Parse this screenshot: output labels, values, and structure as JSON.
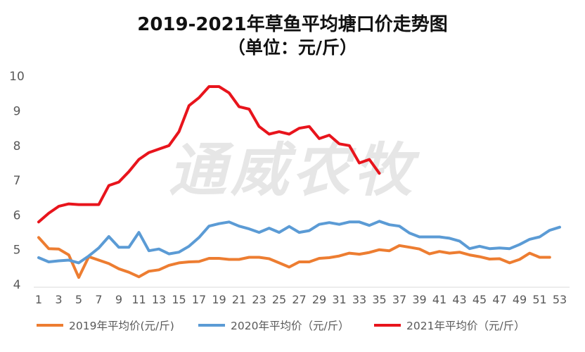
{
  "chart_data": {
    "type": "line",
    "title": "2019-2021年草鱼平均塘口价走势图",
    "subtitle": "（单位：元/斤）",
    "watermark": "通威农牧",
    "ylim": [
      4,
      10
    ],
    "yticks": [
      4,
      5,
      6,
      7,
      8,
      9,
      10
    ],
    "grid": false,
    "legend_position": "bottom",
    "x_tick_labels": [
      1,
      3,
      5,
      7,
      9,
      11,
      13,
      15,
      17,
      19,
      21,
      23,
      25,
      27,
      29,
      31,
      33,
      35,
      37,
      39,
      41,
      43,
      45,
      47,
      49,
      51,
      53
    ],
    "series": [
      {
        "name": "2019年平均价(元/斤)",
        "color": "#ED7D31",
        "x": [
          1,
          2,
          3,
          4,
          5,
          6,
          7,
          8,
          9,
          10,
          11,
          12,
          13,
          14,
          15,
          16,
          17,
          18,
          19,
          20,
          21,
          22,
          23,
          24,
          25,
          26,
          27,
          28,
          29,
          30,
          31,
          32,
          33,
          34,
          35,
          36,
          37,
          38,
          39,
          40,
          41,
          42,
          43,
          44,
          45,
          46,
          47,
          48,
          49,
          50,
          51,
          52
        ],
        "values": [
          5.35,
          5.03,
          5.02,
          4.85,
          4.2,
          4.8,
          4.7,
          4.6,
          4.45,
          4.35,
          4.22,
          4.38,
          4.42,
          4.55,
          4.62,
          4.65,
          4.66,
          4.75,
          4.75,
          4.72,
          4.72,
          4.78,
          4.78,
          4.74,
          4.62,
          4.5,
          4.65,
          4.65,
          4.75,
          4.77,
          4.82,
          4.9,
          4.87,
          4.92,
          5.0,
          4.97,
          5.12,
          5.07,
          5.02,
          4.88,
          4.95,
          4.9,
          4.93,
          4.85,
          4.8,
          4.73,
          4.74,
          4.62,
          4.72,
          4.9,
          4.78,
          4.78
        ]
      },
      {
        "name": "2020年平均价（元/斤）",
        "color": "#5B9BD5",
        "x": [
          1,
          2,
          3,
          4,
          5,
          6,
          7,
          8,
          9,
          10,
          11,
          12,
          13,
          14,
          15,
          16,
          17,
          18,
          19,
          20,
          21,
          22,
          23,
          24,
          25,
          26,
          27,
          28,
          29,
          30,
          31,
          32,
          33,
          34,
          35,
          36,
          37,
          38,
          39,
          40,
          41,
          42,
          43,
          44,
          45,
          46,
          47,
          48,
          49,
          50,
          51,
          52,
          53
        ],
        "values": [
          4.77,
          4.65,
          4.68,
          4.7,
          4.62,
          4.82,
          5.05,
          5.38,
          5.07,
          5.07,
          5.5,
          4.97,
          5.02,
          4.88,
          4.93,
          5.1,
          5.35,
          5.68,
          5.75,
          5.8,
          5.68,
          5.6,
          5.5,
          5.62,
          5.5,
          5.67,
          5.5,
          5.55,
          5.73,
          5.78,
          5.73,
          5.8,
          5.8,
          5.7,
          5.82,
          5.72,
          5.68,
          5.48,
          5.37,
          5.37,
          5.37,
          5.33,
          5.25,
          5.03,
          5.1,
          5.03,
          5.05,
          5.03,
          5.15,
          5.3,
          5.37,
          5.56,
          5.65
        ]
      },
      {
        "name": "2021年平均价（元/斤）",
        "color": "#E8141C",
        "x": [
          1,
          2,
          3,
          4,
          5,
          6,
          7,
          8,
          9,
          10,
          11,
          12,
          13,
          14,
          15,
          16,
          17,
          18,
          19,
          20,
          21,
          22,
          23,
          24,
          25,
          26,
          27,
          28,
          29,
          30,
          31,
          32,
          33,
          34,
          35
        ],
        "values": [
          5.8,
          6.05,
          6.25,
          6.32,
          6.3,
          6.3,
          6.3,
          6.85,
          6.95,
          7.25,
          7.6,
          7.8,
          7.9,
          8.0,
          8.4,
          9.15,
          9.38,
          9.7,
          9.7,
          9.52,
          9.12,
          9.05,
          8.55,
          8.33,
          8.4,
          8.33,
          8.5,
          8.55,
          8.2,
          8.3,
          8.05,
          8.0,
          7.5,
          7.6,
          7.2
        ]
      }
    ]
  }
}
